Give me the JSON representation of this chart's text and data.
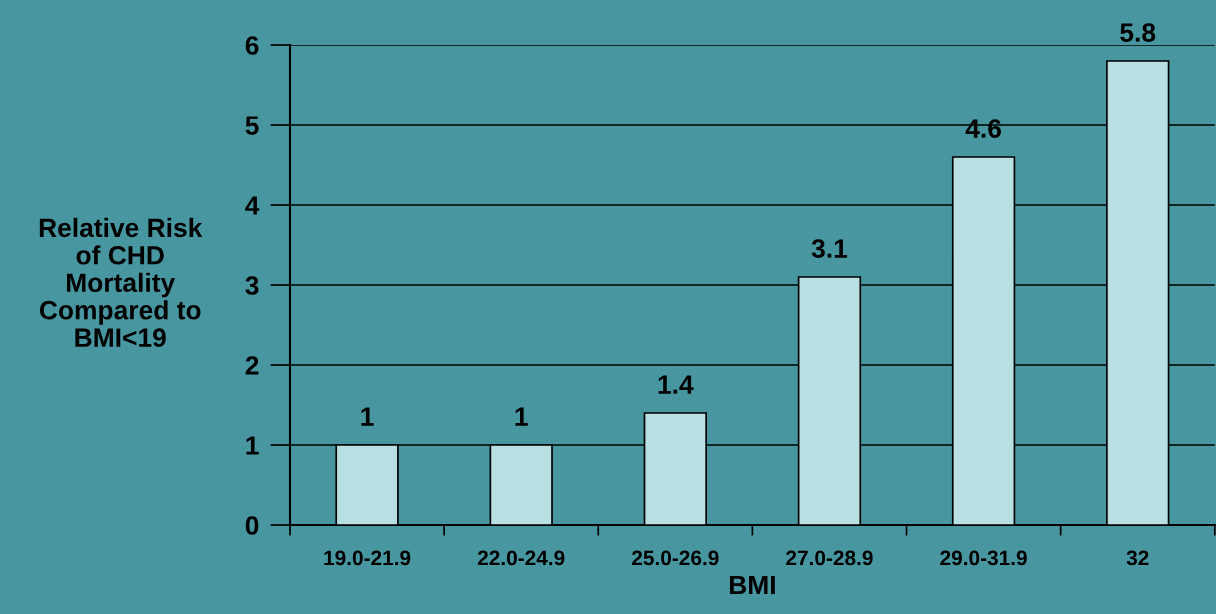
{
  "chart_data": {
    "type": "bar",
    "xlabel": "BMI",
    "ylabel": "Relative Risk\nof CHD\nMortality\nCompared to\nBMI<19",
    "categories": [
      "19.0-21.9",
      "22.0-24.9",
      "25.0-26.9",
      "27.0-28.9",
      "29.0-31.9",
      "32"
    ],
    "values": [
      1,
      1,
      1.4,
      3.1,
      4.6,
      5.8
    ],
    "color": "#b8dfe2",
    "ylim": [
      0,
      6
    ],
    "yticks": [
      0,
      1,
      2,
      3,
      4,
      5,
      6
    ],
    "grid": "y",
    "data_labels": true,
    "legend": false
  }
}
